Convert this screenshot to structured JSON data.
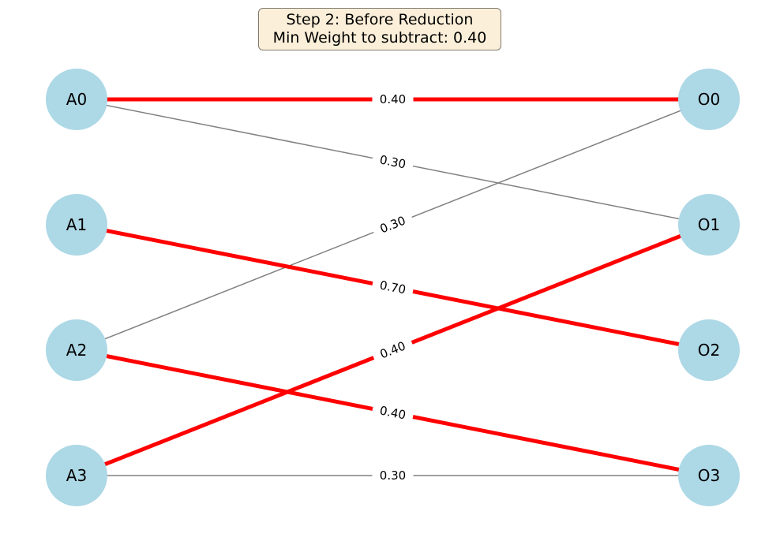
{
  "title": {
    "line1": "Step 2: Before Reduction",
    "line2": "Min Weight to subtract: 0.40"
  },
  "colors": {
    "node_fill": "#add8e6",
    "highlight_edge": "#ff0000",
    "normal_edge": "#808080"
  },
  "nodes": {
    "left": [
      "A0",
      "A1",
      "A2",
      "A3"
    ],
    "right": [
      "O0",
      "O1",
      "O2",
      "O3"
    ]
  },
  "edges": [
    {
      "from": "A0",
      "to": "O0",
      "weight": "0.40",
      "highlighted": true
    },
    {
      "from": "A0",
      "to": "O1",
      "weight": "0.30",
      "highlighted": false
    },
    {
      "from": "A2",
      "to": "O0",
      "weight": "0.30",
      "highlighted": false
    },
    {
      "from": "A1",
      "to": "O2",
      "weight": "0.70",
      "highlighted": true
    },
    {
      "from": "A3",
      "to": "O1",
      "weight": "0.40",
      "highlighted": true
    },
    {
      "from": "A2",
      "to": "O3",
      "weight": "0.40",
      "highlighted": true
    },
    {
      "from": "A3",
      "to": "O3",
      "weight": "0.30",
      "highlighted": false
    }
  ]
}
